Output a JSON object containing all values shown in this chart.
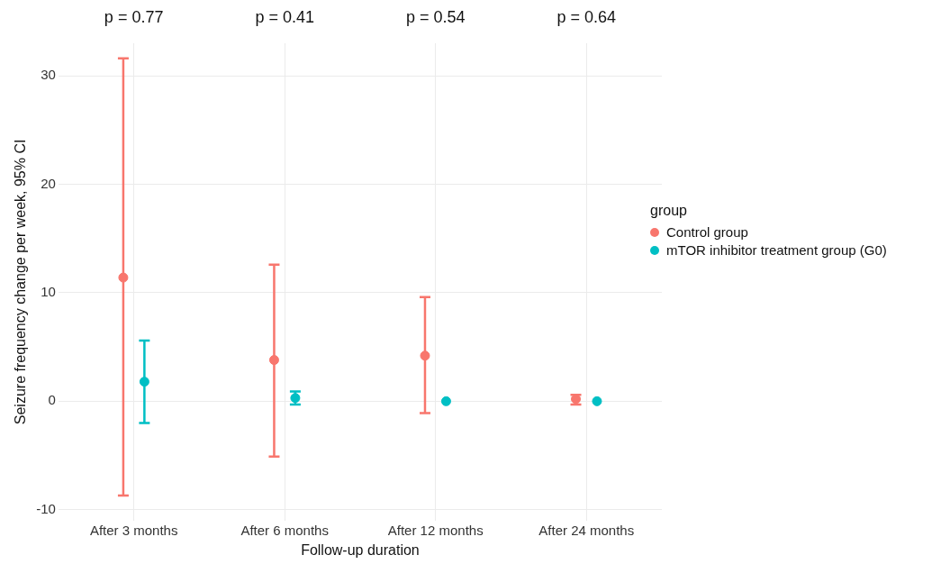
{
  "chart_data": {
    "type": "scatter",
    "xlabel": "Follow-up duration",
    "ylabel": "Seizure frequency change per week, 95% CI",
    "legend_title": "group",
    "categories": [
      "After 3 months",
      "After 6 months",
      "After 12 months",
      "After 24 months"
    ],
    "series": [
      {
        "name": "Control group",
        "color": "#f8766d",
        "values": [
          11.4,
          3.8,
          4.2,
          0.2
        ],
        "errors": [
          [
            -8.7,
            31.6
          ],
          [
            -5.1,
            12.6
          ],
          [
            -1.1,
            9.6
          ],
          [
            -0.3,
            0.6
          ]
        ]
      },
      {
        "name": "mTOR inhibitor treatment group (G0)",
        "color": "#00bfc4",
        "values": [
          1.8,
          0.3,
          0,
          0
        ],
        "errors": [
          [
            -2.0,
            5.6
          ],
          [
            -0.3,
            0.9
          ],
          null,
          null
        ]
      }
    ],
    "ylim": [
      -11,
      33
    ],
    "yticks": [
      -10,
      0,
      10,
      20,
      30
    ],
    "grid": true,
    "legend": "right",
    "marker": "circle",
    "annotations": [
      "p = 0.77",
      "p = 0.41",
      "p = 0.54",
      "p = 0.64"
    ]
  }
}
